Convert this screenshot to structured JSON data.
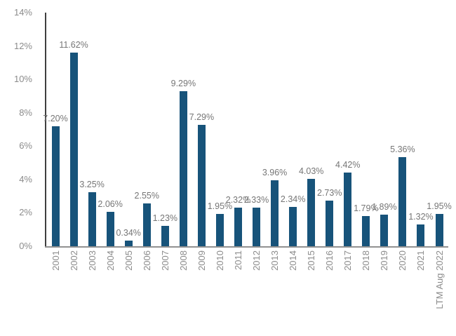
{
  "chart_data": {
    "type": "bar",
    "title": "",
    "xlabel": "",
    "ylabel": "",
    "categories": [
      "2001",
      "2002",
      "2003",
      "2004",
      "2005",
      "2006",
      "2007",
      "2008",
      "2009",
      "2010",
      "2011",
      "2012",
      "2013",
      "2014",
      "2015",
      "2016",
      "2017",
      "2018",
      "2019",
      "2020",
      "2021",
      "LTM Aug 2022"
    ],
    "values": [
      7.2,
      11.62,
      3.25,
      2.06,
      0.34,
      2.55,
      1.23,
      9.29,
      7.29,
      1.95,
      2.32,
      2.33,
      3.96,
      2.34,
      4.03,
      2.73,
      4.42,
      1.79,
      1.89,
      5.36,
      1.32,
      1.95
    ],
    "data_labels": [
      "7.20%",
      "11.62%",
      "3.25%",
      "2.06%",
      "0.34%",
      "2.55%",
      "1.23%",
      "9.29%",
      "7.29%",
      "1.95%",
      "2.32%",
      "2.33%",
      "3.96%",
      "2.34%",
      "4.03%",
      "2.73%",
      "4.42%",
      "1.79%",
      "1.89%",
      "5.36%",
      "1.32%",
      "1.95%"
    ],
    "y_ticks": [
      0,
      2,
      4,
      6,
      8,
      10,
      12,
      14
    ],
    "y_tick_labels": [
      "0%",
      "2%",
      "4%",
      "6%",
      "8%",
      "10%",
      "12%",
      "14%"
    ],
    "ylim": [
      0,
      14
    ],
    "grid": false,
    "legend": "none"
  },
  "colors": {
    "bar": "#17537a",
    "data_label_text": "#767676",
    "axis_tick_text": "#8c8c8c",
    "y_axis_line": "#3f3f3f",
    "baseline": "#919191",
    "background": "#ffffff"
  }
}
